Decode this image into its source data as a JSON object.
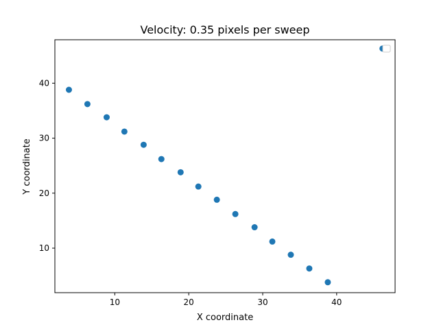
{
  "chart_data": {
    "type": "scatter",
    "title": "Velocity: 0.35 pixels per sweep",
    "xlabel": "X coordinate",
    "ylabel": "Y coordinate",
    "xlim": [
      1.9,
      47.9
    ],
    "ylim": [
      1.9,
      47.9
    ],
    "xticks": [
      10,
      20,
      30,
      40
    ],
    "yticks": [
      10,
      20,
      30,
      40
    ],
    "grid": false,
    "legend": "top-right",
    "color": "#1f77b4",
    "series": [
      {
        "x": [
          3.8,
          6.3,
          8.9,
          11.3,
          13.9,
          16.3,
          18.9,
          21.3,
          23.8,
          26.3,
          28.9,
          31.3,
          33.8,
          36.3,
          38.8,
          46.2
        ],
        "y": [
          38.8,
          36.2,
          33.8,
          31.2,
          28.8,
          26.2,
          23.8,
          21.2,
          18.8,
          16.2,
          13.8,
          11.2,
          8.8,
          6.3,
          3.8,
          46.3
        ]
      }
    ]
  }
}
